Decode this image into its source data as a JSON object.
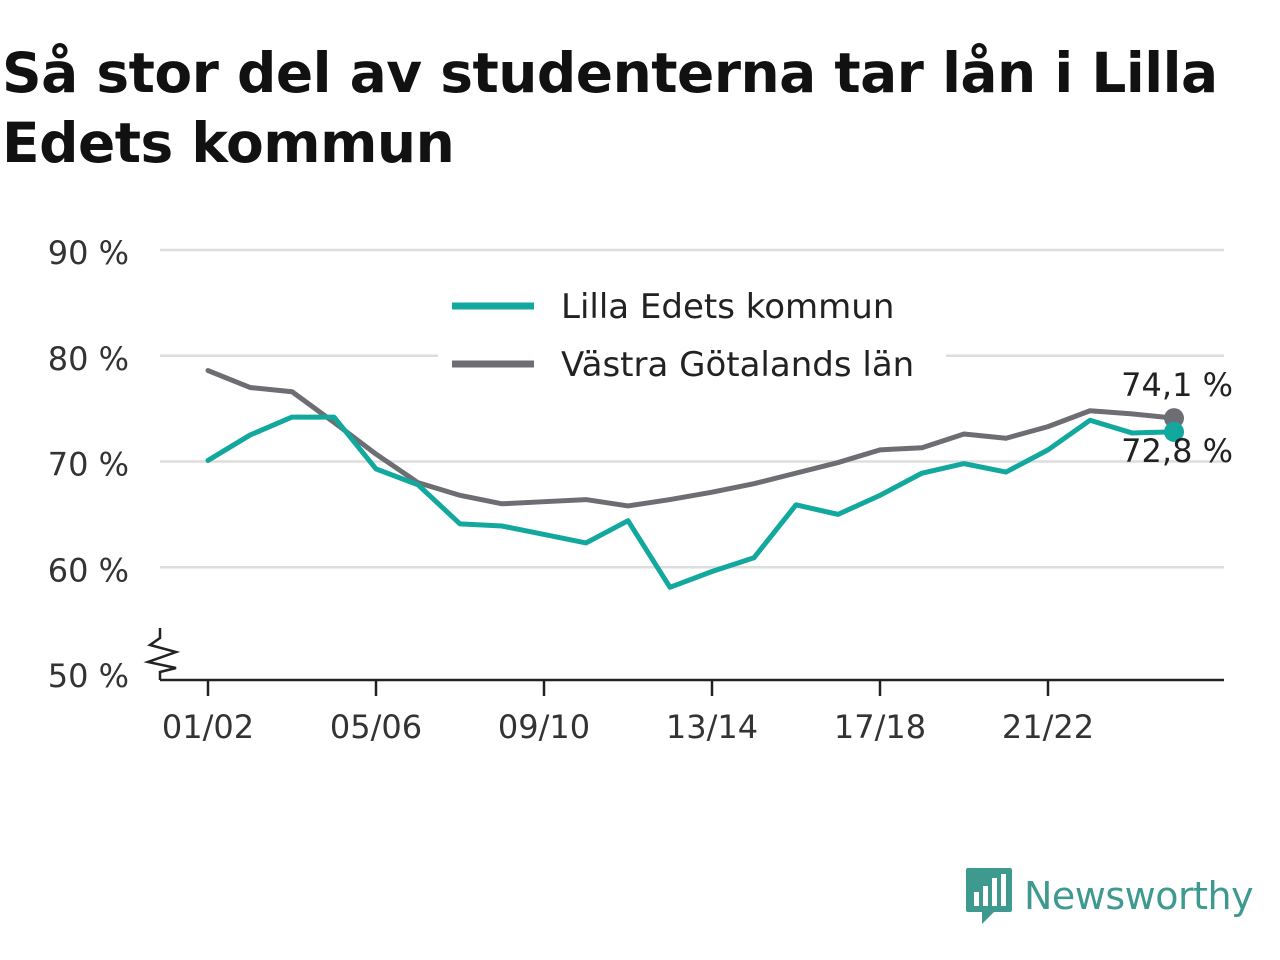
{
  "title": "Så stor del av studenterna tar lån i Lilla Edets kommun",
  "brand": {
    "name": "Newsworthy",
    "logo_icon": "newsworthy-chart-logo-icon",
    "color": "#3e9a8f"
  },
  "chart_data": {
    "type": "line",
    "title": "Så stor del av studenterna tar lån i Lilla Edets kommun",
    "xlabel": "",
    "ylabel": "",
    "ylim": [
      50,
      90
    ],
    "yticks": [
      50,
      60,
      70,
      80,
      90
    ],
    "ytick_labels": [
      "50 %",
      "60 %",
      "70 %",
      "80 %",
      "90 %"
    ],
    "y_axis_break": true,
    "grid": true,
    "legend_position": "top-center",
    "x": [
      "01/02",
      "02/03",
      "03/04",
      "04/05",
      "05/06",
      "06/07",
      "07/08",
      "08/09",
      "09/10",
      "10/11",
      "11/12",
      "12/13",
      "13/14",
      "14/15",
      "15/16",
      "16/17",
      "17/18",
      "18/19",
      "19/20",
      "20/21",
      "21/22",
      "22/23",
      "23/24",
      "24/25"
    ],
    "xtick_labels": [
      "01/02",
      "05/06",
      "09/10",
      "13/14",
      "17/18",
      "21/22"
    ],
    "series": [
      {
        "name": "Lilla Edets kommun",
        "color": "#13a89e",
        "values": [
          70.1,
          72.5,
          74.2,
          74.2,
          69.3,
          67.8,
          64.1,
          63.9,
          63.1,
          62.3,
          64.4,
          58.1,
          59.6,
          60.9,
          65.9,
          65.0,
          66.8,
          68.9,
          69.8,
          69.0,
          71.1,
          73.9,
          72.7,
          72.8
        ],
        "end_label": "72,8 %"
      },
      {
        "name": "Västra Götalands län",
        "color": "#6d6e73",
        "values": [
          78.6,
          77.0,
          76.6,
          73.7,
          70.7,
          68.0,
          66.8,
          66.0,
          66.2,
          66.4,
          65.8,
          66.4,
          67.1,
          67.9,
          68.9,
          69.9,
          71.1,
          71.3,
          72.6,
          72.2,
          73.3,
          74.8,
          74.5,
          74.1
        ],
        "end_label": "74,1 %"
      }
    ]
  }
}
